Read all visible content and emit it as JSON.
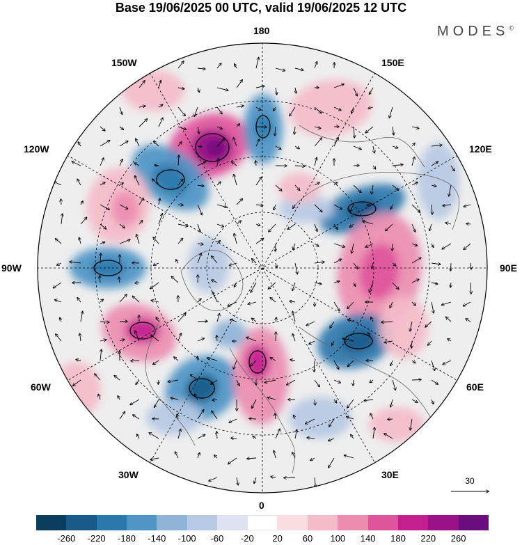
{
  "header": {
    "title": "Base 19/06/2025 00 UTC, valid 19/06/2025 12 UTC",
    "brand": "MODES",
    "brand_mark": "©"
  },
  "map": {
    "projection": "polar-stereographic-north",
    "background": "#eeeeee",
    "longitude_labels": [
      {
        "id": "lon-180",
        "text": "180"
      },
      {
        "id": "lon-150w",
        "text": "150W"
      },
      {
        "id": "lon-150e",
        "text": "150E"
      },
      {
        "id": "lon-120w",
        "text": "120W"
      },
      {
        "id": "lon-120e",
        "text": "120E"
      },
      {
        "id": "lon-90w",
        "text": "90W"
      },
      {
        "id": "lon-90e",
        "text": "90E"
      },
      {
        "id": "lon-60w",
        "text": "60W"
      },
      {
        "id": "lon-60e",
        "text": "60E"
      },
      {
        "id": "lon-30w",
        "text": "30W"
      },
      {
        "id": "lon-30e",
        "text": "30E"
      },
      {
        "id": "lon-0",
        "text": "0"
      }
    ],
    "reference_vector": "30"
  },
  "colorbar": {
    "colors": [
      "#0b3d5e",
      "#1a5a8a",
      "#2b78ad",
      "#4e95c6",
      "#8fb4d8",
      "#b7c9e3",
      "#dfe3f1",
      "#ffffff",
      "#f9dde1",
      "#f4bcc9",
      "#ec8db0",
      "#df559c",
      "#c41e8f",
      "#991287",
      "#6a0e7e"
    ],
    "tick_labels": [
      "-260",
      "-220",
      "-180",
      "-140",
      "-100",
      "-60",
      "-20",
      "20",
      "60",
      "100",
      "140",
      "180",
      "220",
      "260"
    ]
  }
}
